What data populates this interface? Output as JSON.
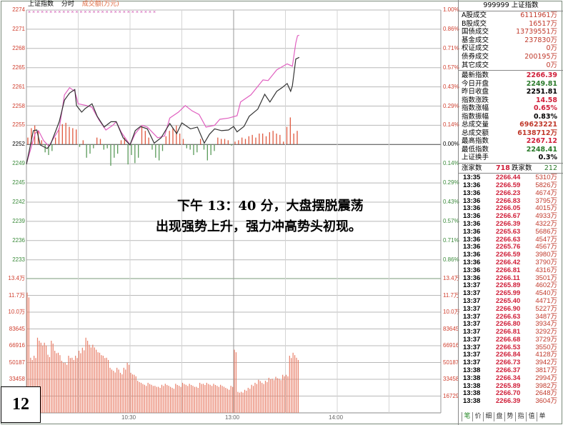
{
  "chart_header": {
    "index_name": "上证指数",
    "mode": "分时",
    "metric": "成交额(万元)"
  },
  "colors": {
    "up": "#e03030",
    "down": "#2a8a2a",
    "price_line": "#333333",
    "avg_line": "#e060c0",
    "volume": "#e8806a",
    "axis_up": "#d04030",
    "axis_down": "#3a8a3a"
  },
  "price_axis": {
    "left": [
      "2274",
      "2271",
      "2268",
      "2265",
      "2261",
      "2258",
      "2255",
      "2252",
      "2249",
      "2245",
      "2242",
      "2239",
      "2236",
      "2233"
    ],
    "right": [
      "1.00%",
      "0.86%",
      "0.71%",
      "0.57%",
      "0.43%",
      "0.29%",
      "0.14%",
      "0.00%",
      "0.14%",
      "0.29%",
      "0.43%",
      "0.57%",
      "0.71%",
      "0.86%"
    ]
  },
  "volume_axis": [
    "13.4万",
    "11.7万",
    "10.0万",
    "83645",
    "66916",
    "50187",
    "33458",
    "16729"
  ],
  "time_axis": [
    "10:30",
    "13:00",
    "14:00"
  ],
  "chart_data": {
    "type": "line",
    "prev_close": 2251.81,
    "ylim_pct": [
      -1.0,
      1.0
    ],
    "price_series": [
      [
        "09:30",
        2248.46
      ],
      [
        "09:34",
        2254.1
      ],
      [
        "09:36",
        2254.2
      ],
      [
        "09:38",
        2251.7
      ],
      [
        "09:42",
        2251.1
      ],
      [
        "09:44",
        2251.8
      ],
      [
        "09:49",
        2255.6
      ],
      [
        "09:52",
        2259.2
      ],
      [
        "09:55",
        2260.4
      ],
      [
        "09:58",
        2261.0
      ],
      [
        "09:59",
        2258.3
      ],
      [
        "10:02",
        2257.2
      ],
      [
        "10:04",
        2257.8
      ],
      [
        "10:08",
        2258.6
      ],
      [
        "10:11",
        2256.5
      ],
      [
        "10:15",
        2254.7
      ],
      [
        "10:19",
        2255.6
      ],
      [
        "10:22",
        2255.6
      ],
      [
        "10:26",
        2252.9
      ],
      [
        "10:30",
        2251.7
      ],
      [
        "10:33",
        2254.1
      ],
      [
        "10:36",
        2254.8
      ],
      [
        "10:40",
        2254.4
      ],
      [
        "10:44",
        2252.0
      ],
      [
        "10:48",
        2252.9
      ],
      [
        "10:53",
        2255.3
      ],
      [
        "10:57",
        2253.6
      ],
      [
        "11:00",
        2255.4
      ],
      [
        "11:05",
        2254.4
      ],
      [
        "11:09",
        2254.7
      ],
      [
        "11:13",
        2252.0
      ],
      [
        "11:16",
        2253.5
      ],
      [
        "11:19",
        2254.4
      ],
      [
        "11:23",
        2254.1
      ],
      [
        "11:27",
        2254.2
      ],
      [
        "13:00",
        2254.8
      ],
      [
        "13:02",
        2253.9
      ],
      [
        "13:06",
        2254.8
      ],
      [
        "13:09",
        2256.5
      ],
      [
        "13:14",
        2257.7
      ],
      [
        "13:18",
        2260.2
      ],
      [
        "13:21",
        2258.9
      ],
      [
        "13:25",
        2260.7
      ],
      [
        "13:28",
        2261.3
      ],
      [
        "13:31",
        2262.0
      ],
      [
        "13:33",
        2260.7
      ],
      [
        "13:34",
        2261.6
      ],
      [
        "13:36",
        2266.1
      ],
      [
        "13:38",
        2266.39
      ]
    ],
    "avg_series": [
      [
        "09:30",
        2248.5
      ],
      [
        "09:35",
        2253.6
      ],
      [
        "09:37",
        2254.1
      ],
      [
        "09:40",
        2252.4
      ],
      [
        "09:43",
        2251.5
      ],
      [
        "09:49",
        2254.4
      ],
      [
        "09:52",
        2260.1
      ],
      [
        "09:55",
        2261.3
      ],
      [
        "09:58",
        2260.7
      ],
      [
        "10:00",
        2258.6
      ],
      [
        "10:05",
        2258.3
      ],
      [
        "10:08",
        2258.0
      ],
      [
        "10:12",
        2255.9
      ],
      [
        "10:16",
        2254.2
      ],
      [
        "10:20",
        2255.0
      ],
      [
        "10:22",
        2255.6
      ],
      [
        "10:25",
        2253.8
      ],
      [
        "10:30",
        2251.7
      ],
      [
        "10:33",
        2253.6
      ],
      [
        "10:37",
        2255.0
      ],
      [
        "10:40",
        2254.7
      ],
      [
        "10:46",
        2252.9
      ],
      [
        "10:50",
        2253.2
      ],
      [
        "10:53",
        2256.2
      ],
      [
        "10:58",
        2257.2
      ],
      [
        "11:02",
        2258.3
      ],
      [
        "11:06",
        2257.4
      ],
      [
        "11:10",
        2256.8
      ],
      [
        "11:14",
        2254.7
      ],
      [
        "11:19",
        2255.0
      ],
      [
        "11:22",
        2256.0
      ],
      [
        "11:27",
        2256.2
      ],
      [
        "13:02",
        2256.6
      ],
      [
        "13:04",
        2258.9
      ],
      [
        "13:10",
        2260.1
      ],
      [
        "13:17",
        2262.6
      ],
      [
        "13:20",
        2262.5
      ],
      [
        "13:25",
        2264.3
      ],
      [
        "13:31",
        2265.3
      ],
      [
        "13:34",
        2264.9
      ],
      [
        "13:36",
        2268.8
      ],
      [
        "13:37",
        2270.0
      ],
      [
        "13:38",
        2270.1
      ]
    ],
    "strength_bars_pct": [
      0.05,
      0.12,
      0.14,
      0.1,
      0.03,
      -0.06,
      -0.08,
      -0.05,
      0.05,
      0.12,
      0.15,
      0.16,
      0.13,
      0.12,
      0.11,
      -0.02,
      0.03,
      -0.1,
      -0.07,
      -0.03,
      0.05,
      0.04,
      -0.04,
      -0.03,
      -0.16,
      -0.1,
      -0.07,
      0.03,
      0.05,
      -0.15,
      -0.08,
      -0.14,
      -0.1,
      0.14,
      0.1,
      0.05,
      -0.04,
      -0.1,
      -0.12,
      -0.05,
      0.06,
      0.1,
      0.12,
      0.14,
      0.08,
      0.04,
      -0.03,
      -0.04,
      -0.08,
      -0.06,
      0.04,
      -0.04,
      -0.12,
      -0.08,
      -0.05,
      0.05,
      0.04,
      0.04,
      0.03,
      -0.01,
      0.02,
      0.03,
      0.05,
      0.04,
      0.06,
      0.07,
      0.05,
      0.08,
      0.08,
      0.06,
      0.09,
      0.1,
      0.08,
      0.07,
      0.02,
      0.13,
      0.2,
      0.08,
      0.1
    ],
    "volume_2min": [
      120000,
      55000,
      57000,
      75000,
      70000,
      70000,
      58000,
      72000,
      62000,
      60000,
      52000,
      50000,
      57000,
      55000,
      57000,
      62000,
      65000,
      75000,
      68000,
      68000,
      63000,
      60000,
      57000,
      55000,
      45000,
      42000,
      45000,
      40000,
      45000,
      50000,
      40000,
      38000,
      32000,
      30000,
      28000,
      30000,
      28000,
      27000,
      26000,
      28000,
      29000,
      27000,
      25000,
      29000,
      27000,
      30000,
      28000,
      29000,
      27000,
      26000,
      30000,
      29000,
      30000,
      28000,
      29000,
      27000,
      28000,
      26000,
      24000,
      27000,
      63000,
      21000,
      21000,
      23000,
      25000,
      28000,
      30000,
      33000,
      30000,
      32000,
      35000,
      34000,
      36000,
      34000,
      38000,
      38000,
      57000,
      60000,
      55000
    ],
    "volume_max": 134000
  },
  "top_markers": "× × × ×   ×   ×   ×   ×   ×   ×   ×   ×   ×   ×   ×   ×   ×   ×   ×   ×   ×   ×   ×   ×   ×   ×   ×   ×   ×   ×",
  "annotation": {
    "line1": "下午 13：40 分，大盘摆脱震荡",
    "line2": "出现强势上升，强力冲高势头初现。"
  },
  "slide_number": "12",
  "panel": {
    "header": "999999 上证指数",
    "volumes": [
      {
        "k": "A股成交",
        "v": "6111961万"
      },
      {
        "k": "B股成交",
        "v": "16517万"
      },
      {
        "k": "国债成交",
        "v": "13739551万"
      },
      {
        "k": "基金成交",
        "v": "237830万"
      },
      {
        "k": "权证成交",
        "v": "0万"
      },
      {
        "k": "债券成交",
        "v": "200195万"
      },
      {
        "k": "其它成交",
        "v": "0万"
      }
    ],
    "stats": [
      {
        "k": "最新指数",
        "v": "2266.39",
        "c": "#d0203a"
      },
      {
        "k": "今日开盘",
        "v": "2249.81",
        "c": "#2a7a2a"
      },
      {
        "k": "昨日收盘",
        "v": "2251.81",
        "c": "#000"
      },
      {
        "k": "指数涨跌",
        "v": "14.58",
        "c": "#d0203a"
      },
      {
        "k": "指数涨幅",
        "v": "0.65%",
        "c": "#d0203a"
      },
      {
        "k": "指数振幅",
        "v": "0.83%",
        "c": "#000"
      },
      {
        "k": "总成交量",
        "v": "69623221",
        "c": "#c0392b"
      },
      {
        "k": "总成交额",
        "v": "6138712万",
        "c": "#c0392b"
      },
      {
        "k": "最高指数",
        "v": "2267.12",
        "c": "#d0203a"
      },
      {
        "k": "最低指数",
        "v": "2248.41",
        "c": "#2a7a2a"
      },
      {
        "k": "上证换手",
        "v": "0.3%",
        "c": "#000"
      }
    ],
    "breadth": {
      "up_label": "涨家数",
      "up": "718",
      "down_label": "跌家数",
      "down": "212"
    },
    "ticks": [
      [
        "13:35",
        "2266.44",
        "5310万"
      ],
      [
        "13:36",
        "2266.59",
        "5826万"
      ],
      [
        "13:36",
        "2266.23",
        "4674万"
      ],
      [
        "13:36",
        "2266.83",
        "3795万"
      ],
      [
        "13:36",
        "2266.05",
        "4015万"
      ],
      [
        "13:36",
        "2266.67",
        "4933万"
      ],
      [
        "13:36",
        "2266.39",
        "4322万"
      ],
      [
        "13:36",
        "2265.63",
        "5686万"
      ],
      [
        "13:36",
        "2266.63",
        "4547万"
      ],
      [
        "13:36",
        "2265.76",
        "4567万"
      ],
      [
        "13:36",
        "2266.59",
        "3980万"
      ],
      [
        "13:36",
        "2266.42",
        "3790万"
      ],
      [
        "13:36",
        "2266.81",
        "4316万"
      ],
      [
        "13:36",
        "2266.11",
        "3501万"
      ],
      [
        "13:37",
        "2265.89",
        "4602万"
      ],
      [
        "13:37",
        "2265.99",
        "4540万"
      ],
      [
        "13:37",
        "2265.40",
        "4471万"
      ],
      [
        "13:37",
        "2266.90",
        "5227万"
      ],
      [
        "13:37",
        "2266.63",
        "3487万"
      ],
      [
        "13:37",
        "2266.80",
        "3934万"
      ],
      [
        "13:37",
        "2266.81",
        "3292万"
      ],
      [
        "13:37",
        "2266.68",
        "3729万"
      ],
      [
        "13:37",
        "2266.53",
        "3550万"
      ],
      [
        "13:37",
        "2266.84",
        "4128万"
      ],
      [
        "13:37",
        "2266.73",
        "3942万"
      ],
      [
        "13:38",
        "2266.37",
        "3817万"
      ],
      [
        "13:38",
        "2266.34",
        "2994万"
      ],
      [
        "13:38",
        "2265.89",
        "3982万"
      ],
      [
        "13:38",
        "2266.70",
        "2648万"
      ],
      [
        "13:38",
        "2266.39",
        "3604万"
      ]
    ],
    "tabs": [
      "笔",
      "价",
      "细",
      "盘",
      "势",
      "指",
      "值",
      "单"
    ]
  }
}
